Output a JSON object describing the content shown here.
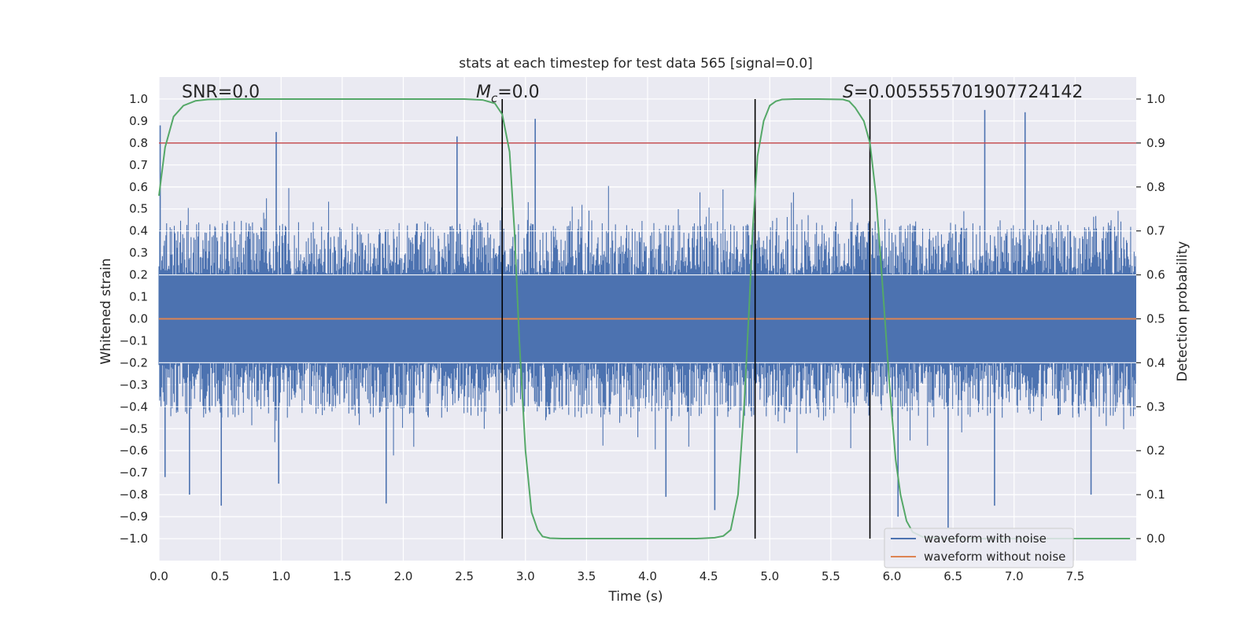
{
  "chart_data": {
    "type": "line",
    "title": "stats at each timestep for test data 565 [signal=0.0]",
    "xlabel": "Time (s)",
    "ylabel": "Whitened strain",
    "y2label": "Detection probability",
    "xlim": [
      0.0,
      8.0
    ],
    "ylim": [
      -1.1,
      1.1
    ],
    "y2lim": [
      -0.05,
      1.05
    ],
    "x_ticks": [
      "0.0",
      "0.5",
      "1.0",
      "1.5",
      "2.0",
      "2.5",
      "3.0",
      "3.5",
      "4.0",
      "4.5",
      "5.0",
      "5.5",
      "6.0",
      "6.5",
      "7.0",
      "7.5"
    ],
    "y_ticks": [
      "1.0",
      "0.9",
      "0.8",
      "0.7",
      "0.6",
      "0.5",
      "0.4",
      "0.3",
      "0.2",
      "0.1",
      "0.0",
      "−0.1",
      "−0.2",
      "−0.3",
      "−0.4",
      "−0.5",
      "−0.6",
      "−0.7",
      "−0.8",
      "−0.9",
      "−1.0"
    ],
    "y2_ticks": [
      "1.0",
      "0.9",
      "0.8",
      "0.7",
      "0.6",
      "0.5",
      "0.4",
      "0.3",
      "0.2",
      "0.1",
      "0.0"
    ],
    "annotations": {
      "snr": "SNR=0.0",
      "mc_symbol": "M",
      "mc_sub": "c",
      "mc_value": "=0.0",
      "s_symbol": "S",
      "s_value": "=0.005555701907724142"
    },
    "threshold": {
      "value": 0.9,
      "axis": "y2",
      "color": "#c44e52"
    },
    "vlines": [
      2.81,
      4.88,
      5.82
    ],
    "series": [
      {
        "name": "waveform with noise",
        "color": "#4c72b0",
        "kind": "noise band",
        "typical_band": [
          -0.4,
          0.4
        ],
        "peaks": [
          {
            "x": 0.01,
            "y": 0.88
          },
          {
            "x": 0.96,
            "y": 0.85
          },
          {
            "x": 2.44,
            "y": 0.83
          },
          {
            "x": 3.08,
            "y": 0.91
          },
          {
            "x": 6.76,
            "y": 0.95
          },
          {
            "x": 7.09,
            "y": 0.94
          },
          {
            "x": 0.05,
            "y": -0.72
          },
          {
            "x": 0.25,
            "y": -0.8
          },
          {
            "x": 0.51,
            "y": -0.85
          },
          {
            "x": 0.98,
            "y": -0.75
          },
          {
            "x": 1.86,
            "y": -0.84
          },
          {
            "x": 4.55,
            "y": -0.87
          },
          {
            "x": 4.15,
            "y": -0.81
          },
          {
            "x": 6.05,
            "y": -0.9
          },
          {
            "x": 6.46,
            "y": -0.95
          },
          {
            "x": 6.84,
            "y": -0.85
          },
          {
            "x": 7.63,
            "y": -0.8
          }
        ]
      },
      {
        "name": "waveform without noise",
        "color": "#dd8452",
        "x": [
          0.0,
          8.0
        ],
        "y": [
          0.0,
          0.0
        ]
      },
      {
        "name": "detection probability",
        "axis": "y2",
        "color": "#55a868",
        "x": [
          0.0,
          0.05,
          0.12,
          0.2,
          0.3,
          0.4,
          0.6,
          1.0,
          2.0,
          2.5,
          2.65,
          2.75,
          2.81,
          2.87,
          2.91,
          2.95,
          3.0,
          3.05,
          3.1,
          3.14,
          3.2,
          3.3,
          3.6,
          4.0,
          4.4,
          4.55,
          4.62,
          4.68,
          4.74,
          4.79,
          4.83,
          4.86,
          4.9,
          4.95,
          5.0,
          5.05,
          5.1,
          5.2,
          5.4,
          5.6,
          5.65,
          5.7,
          5.77,
          5.82,
          5.87,
          5.93,
          5.98,
          6.03,
          6.07,
          6.12,
          6.17,
          6.25,
          6.4,
          6.7,
          7.0,
          7.5,
          7.95
        ],
        "y": [
          0.78,
          0.89,
          0.96,
          0.985,
          0.996,
          0.999,
          1.0,
          1.0,
          1.0,
          1.0,
          0.998,
          0.99,
          0.965,
          0.88,
          0.7,
          0.45,
          0.2,
          0.06,
          0.02,
          0.005,
          0.001,
          0.0,
          0.0,
          0.0,
          0.0,
          0.002,
          0.006,
          0.02,
          0.1,
          0.3,
          0.52,
          0.7,
          0.87,
          0.95,
          0.985,
          0.995,
          0.999,
          1.0,
          1.0,
          0.999,
          0.995,
          0.98,
          0.95,
          0.9,
          0.78,
          0.55,
          0.35,
          0.18,
          0.1,
          0.04,
          0.015,
          0.004,
          0.001,
          0.0,
          0.0,
          0.0,
          0.0
        ]
      }
    ],
    "legend": {
      "position": "lower-right",
      "entries": [
        {
          "label": "waveform with noise",
          "color": "#4c72b0"
        },
        {
          "label": "waveform without noise",
          "color": "#dd8452"
        }
      ]
    }
  }
}
